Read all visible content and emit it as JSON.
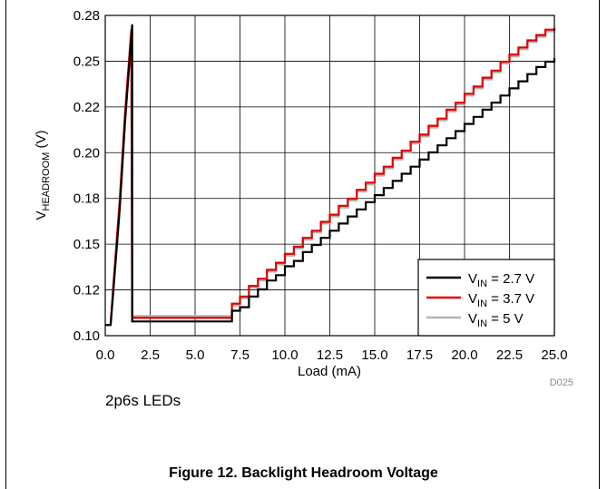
{
  "chart_data": {
    "type": "line",
    "xlabel": "Load (mA)",
    "ylabel_main": "V",
    "ylabel_sub": "HEADROOM",
    "ylabel_unit": " (V)",
    "xlim": [
      0,
      25
    ],
    "ylim": [
      0.1,
      0.28
    ],
    "xticks": [
      "0.0",
      "2.5",
      "5.0",
      "7.5",
      "10.0",
      "12.5",
      "15.0",
      "17.5",
      "20.0",
      "22.5",
      "25.0"
    ],
    "yticks": [
      "0.10",
      "0.12",
      "0.15",
      "0.18",
      "0.20",
      "0.22",
      "0.25",
      "0.28"
    ],
    "grid": true,
    "legend_position": "bottom-right",
    "series": [
      {
        "name_main": "V",
        "name_sub": "IN",
        "name_rest": " = 2.7 V",
        "color": "#000000",
        "x": [
          0,
          0.3,
          0.45,
          0.8,
          1.1,
          1.5,
          1.5,
          1.55,
          7.0,
          7.05,
          7.5,
          8.0,
          8.5,
          9.0,
          9.5,
          10.0,
          10.5,
          11.0,
          11.5,
          12.0,
          12.5,
          13.0,
          13.5,
          14.0,
          14.5,
          15.0,
          15.5,
          16.0,
          16.5,
          17.0,
          17.5,
          18.0,
          18.5,
          19.0,
          19.5,
          20.0,
          20.5,
          21.0,
          21.5,
          22.0,
          22.5,
          23.0,
          23.5,
          24.0,
          24.5,
          25.0
        ],
        "y": [
          0.106,
          0.106,
          0.125,
          0.17,
          0.22,
          0.275,
          0.108,
          0.108,
          0.108,
          0.114,
          0.116,
          0.122,
          0.126,
          0.131,
          0.134,
          0.139,
          0.142,
          0.147,
          0.151,
          0.155,
          0.159,
          0.163,
          0.167,
          0.171,
          0.175,
          0.179,
          0.183,
          0.187,
          0.191,
          0.195,
          0.199,
          0.203,
          0.207,
          0.211,
          0.215,
          0.219,
          0.223,
          0.227,
          0.231,
          0.235,
          0.239,
          0.243,
          0.247,
          0.251,
          0.254,
          0.256
        ]
      },
      {
        "name_main": "V",
        "name_sub": "IN",
        "name_rest": " = 3.7 V",
        "color": "#e00000",
        "x": [
          0,
          0.3,
          0.45,
          0.8,
          1.1,
          1.45,
          1.5,
          1.55,
          7.0,
          7.05,
          7.5,
          8.0,
          8.5,
          9.0,
          9.5,
          10.0,
          10.5,
          11.0,
          11.5,
          12.0,
          12.5,
          13.0,
          13.5,
          14.0,
          14.5,
          15.0,
          15.5,
          16.0,
          16.5,
          17.0,
          17.5,
          18.0,
          18.5,
          19.0,
          19.5,
          20.0,
          20.5,
          21.0,
          21.5,
          22.0,
          22.5,
          23.0,
          23.5,
          24.0,
          24.5,
          25.0
        ],
        "y": [
          0.106,
          0.106,
          0.128,
          0.175,
          0.225,
          0.272,
          0.11,
          0.11,
          0.11,
          0.118,
          0.122,
          0.128,
          0.132,
          0.137,
          0.141,
          0.146,
          0.15,
          0.155,
          0.159,
          0.164,
          0.168,
          0.173,
          0.177,
          0.182,
          0.186,
          0.191,
          0.195,
          0.2,
          0.204,
          0.209,
          0.213,
          0.218,
          0.222,
          0.227,
          0.231,
          0.236,
          0.24,
          0.245,
          0.249,
          0.254,
          0.258,
          0.262,
          0.266,
          0.269,
          0.272,
          0.273
        ]
      },
      {
        "name_main": "V",
        "name_sub": "IN",
        "name_rest": " = 5 V",
        "color": "#b3b3b3",
        "x": [
          0,
          0.3,
          0.45,
          0.8,
          1.1,
          1.45,
          1.5,
          1.55,
          7.0,
          7.05,
          7.5,
          8.0,
          8.5,
          9.0,
          9.5,
          10.0,
          10.5,
          11.0,
          11.5,
          12.0,
          12.5,
          13.0,
          13.5,
          14.0,
          14.5,
          15.0,
          15.5,
          16.0,
          16.5,
          17.0,
          17.5,
          18.0,
          18.5,
          19.0,
          19.5,
          20.0,
          20.5,
          21.0,
          21.5,
          22.0,
          22.5,
          23.0,
          23.5,
          24.0,
          24.5,
          25.0
        ],
        "y": [
          0.106,
          0.106,
          0.127,
          0.173,
          0.222,
          0.268,
          0.111,
          0.111,
          0.111,
          0.117,
          0.121,
          0.127,
          0.131,
          0.136,
          0.14,
          0.145,
          0.149,
          0.154,
          0.158,
          0.163,
          0.167,
          0.172,
          0.176,
          0.181,
          0.185,
          0.19,
          0.194,
          0.199,
          0.203,
          0.208,
          0.212,
          0.217,
          0.221,
          0.226,
          0.23,
          0.235,
          0.239,
          0.244,
          0.248,
          0.253,
          0.257,
          0.261,
          0.265,
          0.268,
          0.271,
          0.272
        ]
      }
    ]
  },
  "figure_code": "D025",
  "note": "2p6s LEDs",
  "caption": "Figure 12. Backlight Headroom Voltage"
}
